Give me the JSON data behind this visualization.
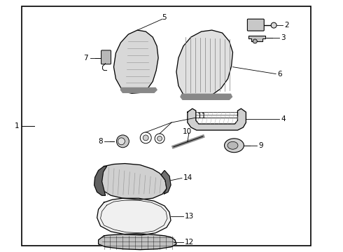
{
  "bg_color": "#ffffff",
  "border_color": "#000000",
  "line_color": "#000000",
  "text_color": "#000000",
  "fig_width": 4.9,
  "fig_height": 3.6,
  "dpi": 100,
  "gray_light": "#cccccc",
  "gray_med": "#aaaaaa",
  "gray_dark": "#555555",
  "gray_fill": "#e8e8e8"
}
